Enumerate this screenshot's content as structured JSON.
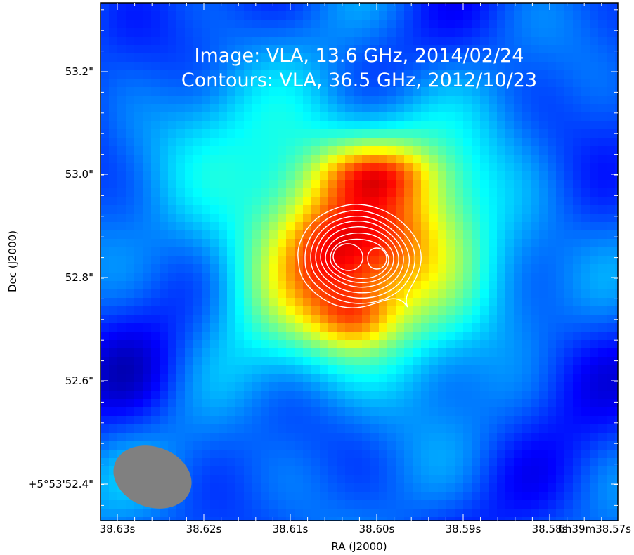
{
  "figure": {
    "annotation_lines": [
      "Image: VLA, 13.6 GHz, 2014/02/24",
      "Contours: VLA, 36.5 GHz, 2012/10/23"
    ],
    "x_axis_label": "RA (J2000)",
    "y_axis_label": "Dec (J2000)",
    "x_tick_labels": [
      "38.63s",
      "38.62s",
      "38.61s",
      "38.60s",
      "38.59s",
      "38.58s",
      "6h39m38.57s"
    ],
    "y_tick_labels": [
      "53.2\"",
      "53.0\"",
      "52.8\"",
      "52.6\"",
      "+5°53'52.4\""
    ],
    "colormap": "jet",
    "contour_color": "#ffffff",
    "beam_color": "#808080"
  }
}
